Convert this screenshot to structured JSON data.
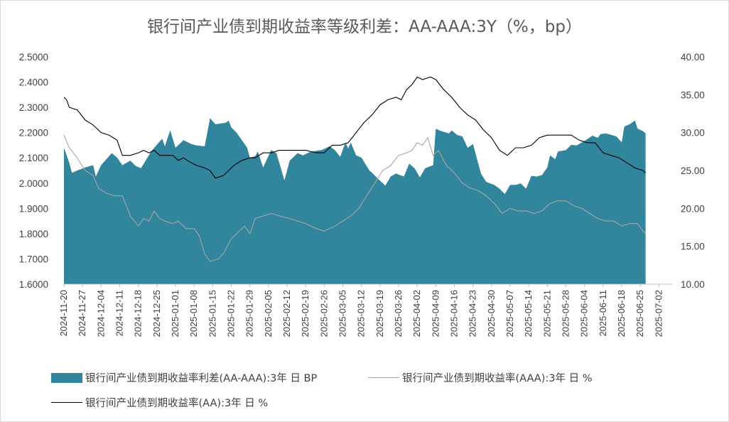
{
  "chart_data": {
    "type": "area+line",
    "title": "银行间产业债到期收益率等级利差：AA-AAA:3Y（%，bp）",
    "left_axis": {
      "min": 1.6,
      "max": 2.5,
      "step": 0.1,
      "decimals": 4
    },
    "right_axis": {
      "min": 10,
      "max": 40,
      "step": 5,
      "decimals": 2
    },
    "x_tick_labels": [
      "2024-11-20",
      "2024-11-27",
      "2024-12-04",
      "2024-12-11",
      "2024-12-18",
      "2024-12-25",
      "2025-01-01",
      "2025-01-08",
      "2025-01-15",
      "2025-01-22",
      "2025-01-29",
      "2025-02-05",
      "2025-02-12",
      "2025-02-19",
      "2025-02-26",
      "2025-03-05",
      "2025-03-12",
      "2025-03-19",
      "2025-03-26",
      "2025-04-02",
      "2025-04-09",
      "2025-04-16",
      "2025-04-23",
      "2025-04-30",
      "2025-05-07",
      "2025-05-14",
      "2025-05-21",
      "2025-05-28",
      "2025-06-04",
      "2025-06-11",
      "2025-06-18",
      "2025-06-25",
      "2025-07-02"
    ],
    "x_range": [
      0,
      229
    ],
    "legend_position": "bottom",
    "series": [
      {
        "name": "银行间产业债到期收益率利差(AA-AAA):3年 日 BP",
        "style": "area",
        "axis": "right",
        "color": "#31859c",
        "points": [
          [
            0,
            28
          ],
          [
            2,
            26
          ],
          [
            3,
            24.7
          ],
          [
            5,
            25
          ],
          [
            8,
            25.4
          ],
          [
            11,
            25.7
          ],
          [
            12,
            24.2
          ],
          [
            14,
            25.7
          ],
          [
            18,
            27.3
          ],
          [
            20,
            26.7
          ],
          [
            22,
            25.7
          ],
          [
            25,
            26.3
          ],
          [
            27,
            25.6
          ],
          [
            29,
            25.3
          ],
          [
            33,
            27.6
          ],
          [
            37,
            29.2
          ],
          [
            38,
            28.2
          ],
          [
            40,
            30.3
          ],
          [
            42,
            28
          ],
          [
            45,
            29
          ],
          [
            48,
            28.5
          ],
          [
            50,
            28.3
          ],
          [
            53,
            28.2
          ],
          [
            55,
            31.9
          ],
          [
            57,
            31.1
          ],
          [
            61,
            31.3
          ],
          [
            62,
            31.6
          ],
          [
            63,
            30.7
          ],
          [
            65,
            30
          ],
          [
            69,
            28
          ],
          [
            70,
            26.7
          ],
          [
            72,
            26.9
          ],
          [
            73,
            27.5
          ],
          [
            75,
            25.4
          ],
          [
            78,
            27.7
          ],
          [
            80,
            27.3
          ],
          [
            83,
            23.7
          ],
          [
            85,
            26.3
          ],
          [
            88,
            27.3
          ],
          [
            90,
            27
          ],
          [
            93,
            27.5
          ],
          [
            97,
            27.7
          ],
          [
            100,
            28.2
          ],
          [
            102,
            27.7
          ],
          [
            104,
            26.8
          ],
          [
            106,
            28.7
          ],
          [
            107,
            27.9
          ],
          [
            108,
            28.7
          ],
          [
            110,
            27
          ],
          [
            112,
            26.7
          ],
          [
            115,
            25
          ],
          [
            116,
            24.7
          ],
          [
            118,
            24
          ],
          [
            121,
            23
          ],
          [
            123,
            24.2
          ],
          [
            125,
            24.6
          ],
          [
            128,
            24.2
          ],
          [
            130,
            25.9
          ],
          [
            132,
            25.3
          ],
          [
            134,
            24.1
          ],
          [
            136,
            25.3
          ],
          [
            139,
            25.7
          ],
          [
            140,
            30.5
          ],
          [
            142,
            30.2
          ],
          [
            145,
            29.9
          ],
          [
            146,
            30.3
          ],
          [
            148,
            29.7
          ],
          [
            150,
            29.5
          ],
          [
            152,
            28
          ],
          [
            154,
            28.5
          ],
          [
            157,
            24.6
          ],
          [
            159,
            23.5
          ],
          [
            162,
            23.1
          ],
          [
            164,
            22.6
          ],
          [
            166,
            21.9
          ],
          [
            168,
            23.1
          ],
          [
            170,
            23.1
          ],
          [
            172,
            23.3
          ],
          [
            174,
            22.6
          ],
          [
            176,
            24.3
          ],
          [
            178,
            24.2
          ],
          [
            180,
            24.4
          ],
          [
            182,
            25.4
          ],
          [
            183,
            27
          ],
          [
            185,
            26.5
          ],
          [
            186,
            27.5
          ],
          [
            189,
            27.7
          ],
          [
            191,
            28.4
          ],
          [
            193,
            28.3
          ],
          [
            196,
            28.9
          ],
          [
            199,
            29.6
          ],
          [
            201,
            29.3
          ],
          [
            202,
            29.8
          ],
          [
            204,
            29.9
          ],
          [
            208,
            29.5
          ],
          [
            210,
            28.7
          ],
          [
            211,
            30.8
          ],
          [
            213,
            31.1
          ],
          [
            215,
            31.6
          ],
          [
            216,
            30.5
          ],
          [
            218,
            30.2
          ],
          [
            219,
            29.9
          ]
        ]
      },
      {
        "name": "银行间产业债到期收益率(AAA):3年 日 %",
        "style": "line",
        "axis": "left",
        "color": "#a6a6a6",
        "points": [
          [
            0,
            2.19
          ],
          [
            2,
            2.14
          ],
          [
            5,
            2.1
          ],
          [
            8,
            2.05
          ],
          [
            11,
            2.03
          ],
          [
            13,
            1.98
          ],
          [
            16,
            1.96
          ],
          [
            19,
            1.95
          ],
          [
            22,
            1.95
          ],
          [
            25,
            1.87
          ],
          [
            28,
            1.83
          ],
          [
            30,
            1.86
          ],
          [
            32,
            1.85
          ],
          [
            34,
            1.89
          ],
          [
            36,
            1.86
          ],
          [
            38,
            1.85
          ],
          [
            41,
            1.84
          ],
          [
            43,
            1.85
          ],
          [
            46,
            1.82
          ],
          [
            49,
            1.82
          ],
          [
            51,
            1.79
          ],
          [
            53,
            1.72
          ],
          [
            55,
            1.69
          ],
          [
            58,
            1.7
          ],
          [
            60,
            1.72
          ],
          [
            63,
            1.78
          ],
          [
            66,
            1.81
          ],
          [
            68,
            1.83
          ],
          [
            70,
            1.8
          ],
          [
            72,
            1.86
          ],
          [
            75,
            1.87
          ],
          [
            78,
            1.88
          ],
          [
            81,
            1.87
          ],
          [
            85,
            1.86
          ],
          [
            88,
            1.85
          ],
          [
            91,
            1.84
          ],
          [
            95,
            1.82
          ],
          [
            98,
            1.81
          ],
          [
            102,
            1.83
          ],
          [
            105,
            1.85
          ],
          [
            108,
            1.87
          ],
          [
            111,
            1.9
          ],
          [
            114,
            1.95
          ],
          [
            117,
            2.0
          ],
          [
            120,
            2.05
          ],
          [
            123,
            2.07
          ],
          [
            126,
            2.11
          ],
          [
            129,
            2.12
          ],
          [
            131,
            2.13
          ],
          [
            133,
            2.16
          ],
          [
            135,
            2.15
          ],
          [
            137,
            2.18
          ],
          [
            139,
            2.11
          ],
          [
            141,
            2.13
          ],
          [
            144,
            2.07
          ],
          [
            147,
            2.04
          ],
          [
            150,
            2.0
          ],
          [
            153,
            1.98
          ],
          [
            156,
            1.97
          ],
          [
            159,
            1.95
          ],
          [
            162,
            1.92
          ],
          [
            165,
            1.88
          ],
          [
            168,
            1.9
          ],
          [
            171,
            1.89
          ],
          [
            174,
            1.89
          ],
          [
            177,
            1.88
          ],
          [
            180,
            1.89
          ],
          [
            183,
            1.92
          ],
          [
            186,
            1.93
          ],
          [
            189,
            1.93
          ],
          [
            192,
            1.91
          ],
          [
            195,
            1.9
          ],
          [
            198,
            1.88
          ],
          [
            201,
            1.86
          ],
          [
            204,
            1.85
          ],
          [
            207,
            1.85
          ],
          [
            210,
            1.83
          ],
          [
            213,
            1.84
          ],
          [
            216,
            1.84
          ],
          [
            218,
            1.81
          ],
          [
            219,
            1.8
          ]
        ]
      },
      {
        "name": "银行间产业债到期收益率(AA):3年 日 %",
        "style": "line",
        "axis": "left",
        "color": "#000000",
        "points": [
          [
            0,
            2.34
          ],
          [
            1,
            2.33
          ],
          [
            2,
            2.3
          ],
          [
            5,
            2.29
          ],
          [
            8,
            2.25
          ],
          [
            11,
            2.23
          ],
          [
            14,
            2.2
          ],
          [
            17,
            2.19
          ],
          [
            20,
            2.17
          ],
          [
            22,
            2.11
          ],
          [
            25,
            2.11
          ],
          [
            28,
            2.12
          ],
          [
            30,
            2.13
          ],
          [
            32,
            2.12
          ],
          [
            34,
            2.13
          ],
          [
            36,
            2.11
          ],
          [
            38,
            2.11
          ],
          [
            41,
            2.11
          ],
          [
            43,
            2.09
          ],
          [
            45,
            2.1
          ],
          [
            48,
            2.08
          ],
          [
            50,
            2.07
          ],
          [
            53,
            2.06
          ],
          [
            55,
            2.05
          ],
          [
            57,
            2.02
          ],
          [
            60,
            2.03
          ],
          [
            62,
            2.05
          ],
          [
            64,
            2.07
          ],
          [
            67,
            2.09
          ],
          [
            70,
            2.1
          ],
          [
            72,
            2.1
          ],
          [
            75,
            2.12
          ],
          [
            78,
            2.12
          ],
          [
            81,
            2.13
          ],
          [
            85,
            2.13
          ],
          [
            88,
            2.13
          ],
          [
            91,
            2.13
          ],
          [
            95,
            2.12
          ],
          [
            98,
            2.12
          ],
          [
            101,
            2.15
          ],
          [
            104,
            2.15
          ],
          [
            107,
            2.16
          ],
          [
            110,
            2.2
          ],
          [
            113,
            2.24
          ],
          [
            116,
            2.27
          ],
          [
            119,
            2.31
          ],
          [
            122,
            2.33
          ],
          [
            125,
            2.34
          ],
          [
            127,
            2.33
          ],
          [
            129,
            2.37
          ],
          [
            131,
            2.39
          ],
          [
            133,
            2.42
          ],
          [
            135,
            2.41
          ],
          [
            138,
            2.42
          ],
          [
            140,
            2.41
          ],
          [
            143,
            2.37
          ],
          [
            146,
            2.34
          ],
          [
            149,
            2.3
          ],
          [
            152,
            2.27
          ],
          [
            155,
            2.25
          ],
          [
            158,
            2.21
          ],
          [
            161,
            2.18
          ],
          [
            164,
            2.13
          ],
          [
            167,
            2.11
          ],
          [
            170,
            2.14
          ],
          [
            173,
            2.14
          ],
          [
            176,
            2.15
          ],
          [
            179,
            2.18
          ],
          [
            182,
            2.19
          ],
          [
            185,
            2.19
          ],
          [
            188,
            2.19
          ],
          [
            191,
            2.19
          ],
          [
            194,
            2.17
          ],
          [
            197,
            2.16
          ],
          [
            200,
            2.16
          ],
          [
            203,
            2.12
          ],
          [
            206,
            2.11
          ],
          [
            209,
            2.1
          ],
          [
            212,
            2.08
          ],
          [
            215,
            2.06
          ],
          [
            218,
            2.05
          ],
          [
            219,
            2.04
          ]
        ]
      }
    ]
  },
  "legend": [
    {
      "label": "银行间产业债到期收益率利差(AA-AAA):3年 日 BP",
      "swatch": "area",
      "color": "#31859c"
    },
    {
      "label": "银行间产业债到期收益率(AAA):3年 日 %",
      "swatch": "line",
      "color": "#a6a6a6"
    },
    {
      "label": "银行间产业债到期收益率(AA):3年 日 %",
      "swatch": "line",
      "color": "#000000"
    }
  ]
}
